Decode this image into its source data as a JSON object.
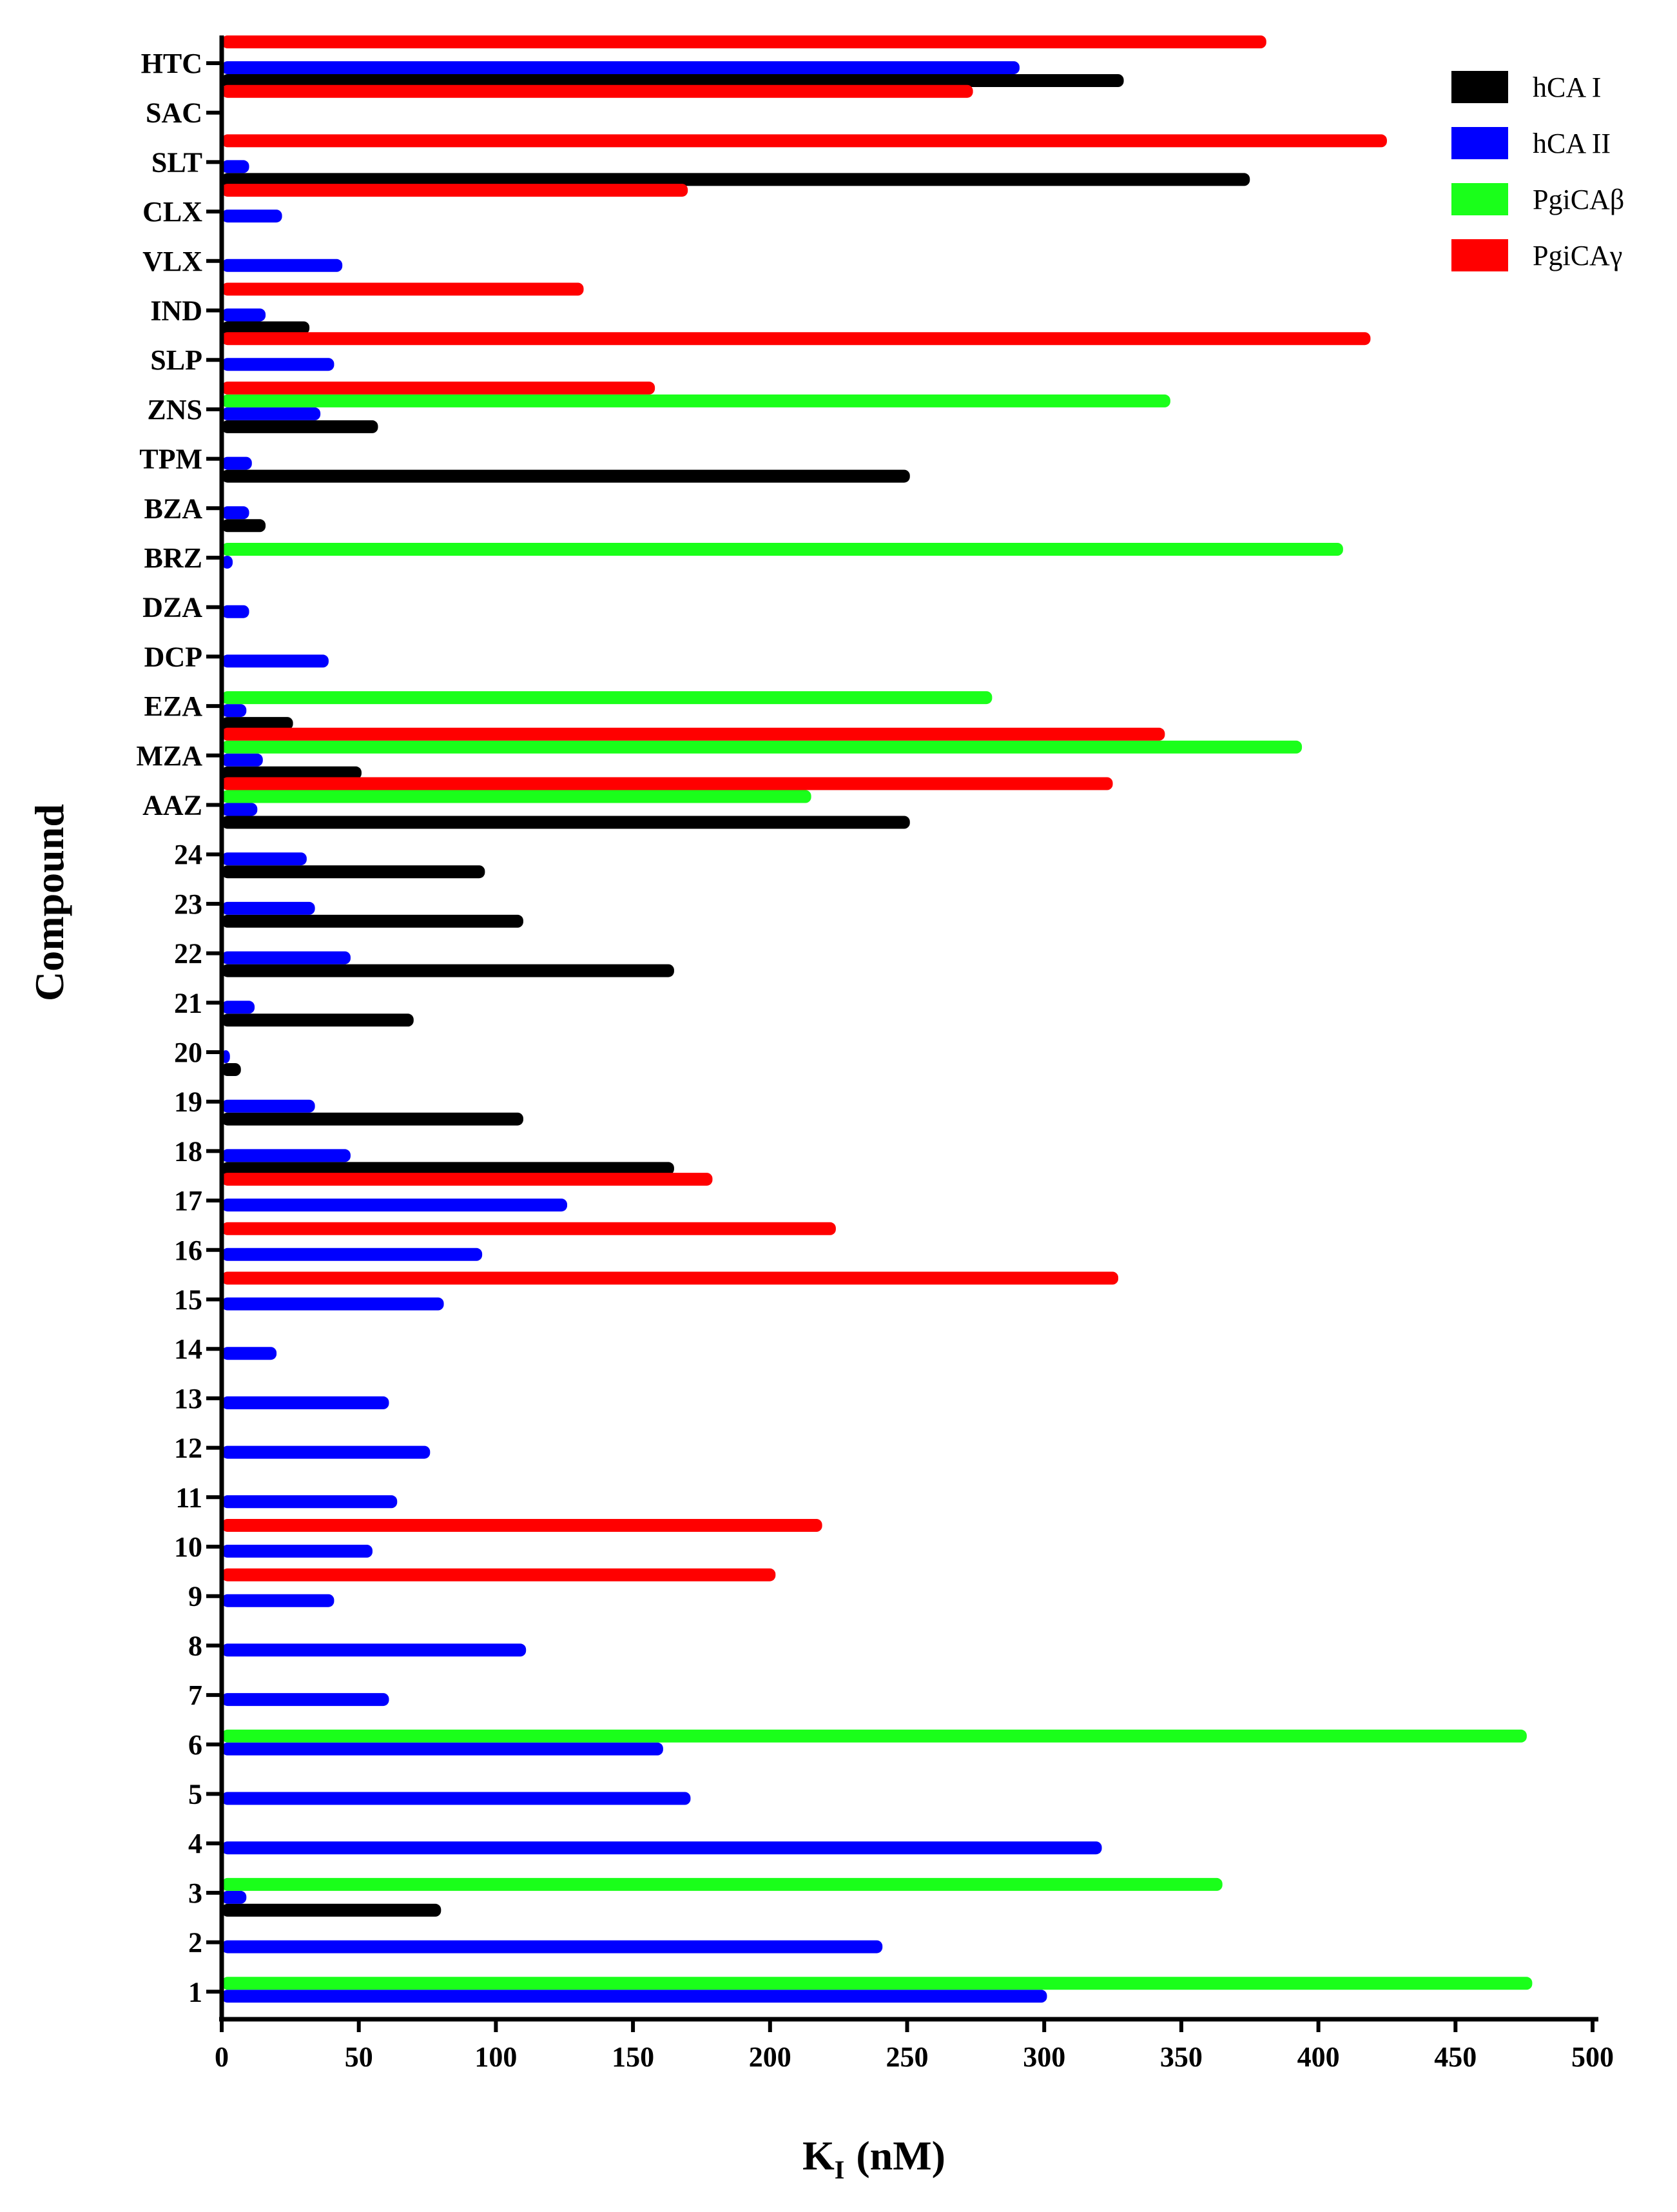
{
  "chart_data": {
    "type": "bar",
    "orientation": "horizontal",
    "xlabel": "K",
    "xlabel_subscript": "I",
    "xlabel_unit": "(nM)",
    "ylabel": "Compound",
    "xlim": [
      0,
      500
    ],
    "xticks": [
      "0",
      "50",
      "100",
      "150",
      "200",
      "250",
      "300",
      "350",
      "400",
      "450",
      "500"
    ],
    "grid": false,
    "legend_position": "top-right",
    "categories": [
      "HTC",
      "SAC",
      "SLT",
      "CLX",
      "VLX",
      "IND",
      "SLP",
      "ZNS",
      "TPM",
      "BZA",
      "BRZ",
      "DZA",
      "DCP",
      "EZA",
      "MZA",
      "AAZ",
      "24",
      "23",
      "22",
      "21",
      "20",
      "19",
      "18",
      "17",
      "16",
      "15",
      "14",
      "13",
      "12",
      "11",
      "10",
      "9",
      "8",
      "7",
      "6",
      "5",
      "4",
      "3",
      "2",
      "1"
    ],
    "series": [
      {
        "name": "hCA I",
        "color": "#000000",
        "values": [
          329,
          null,
          375,
          null,
          null,
          32,
          null,
          57,
          251,
          16,
          null,
          null,
          null,
          26,
          51,
          251,
          96,
          110,
          165,
          70,
          7,
          110,
          165,
          null,
          null,
          null,
          null,
          null,
          null,
          null,
          null,
          null,
          null,
          null,
          null,
          null,
          null,
          80,
          null,
          null
        ]
      },
      {
        "name": "hCA II",
        "color": "#0000ff",
        "values": [
          291,
          null,
          10,
          22,
          44,
          16,
          41,
          36,
          11,
          10,
          4,
          10,
          39,
          9,
          15,
          13,
          31,
          34,
          47,
          12,
          3,
          34,
          47,
          126,
          95,
          81,
          20,
          61,
          76,
          64,
          55,
          41,
          111,
          61,
          161,
          171,
          321,
          9,
          241,
          301
        ]
      },
      {
        "name": "PgiCAβ",
        "color": "#1aff1a",
        "values": [
          null,
          null,
          null,
          null,
          null,
          null,
          null,
          346,
          null,
          null,
          409,
          null,
          null,
          281,
          394,
          215,
          null,
          null,
          null,
          null,
          null,
          null,
          null,
          null,
          null,
          null,
          null,
          null,
          null,
          null,
          null,
          null,
          null,
          null,
          476,
          null,
          null,
          365,
          null,
          478
        ]
      },
      {
        "name": "PgiCAγ",
        "color": "#ff0000",
        "values": [
          381,
          274,
          425,
          170,
          null,
          132,
          419,
          158,
          null,
          null,
          null,
          null,
          null,
          null,
          344,
          325,
          null,
          null,
          null,
          null,
          null,
          null,
          null,
          179,
          224,
          327,
          null,
          null,
          null,
          null,
          219,
          202,
          null,
          null,
          null,
          null,
          null,
          null,
          null,
          null
        ]
      }
    ]
  }
}
